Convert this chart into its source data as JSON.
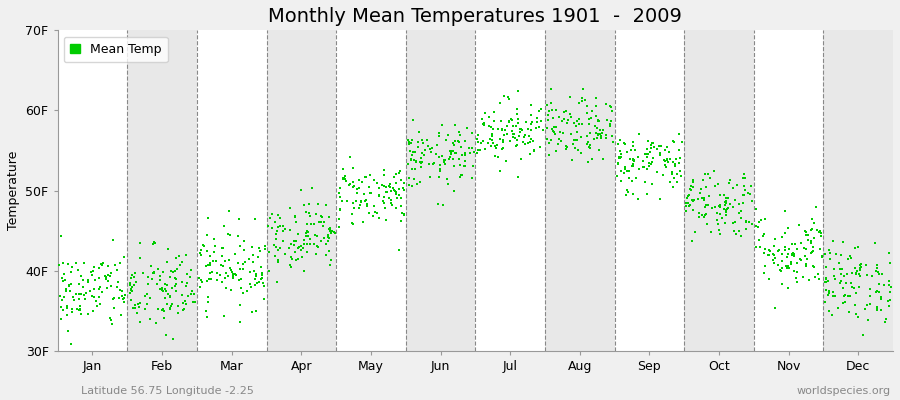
{
  "title": "Monthly Mean Temperatures 1901  -  2009",
  "ylabel": "Temperature",
  "subtitle": "Latitude 56.75 Longitude -2.25",
  "watermark": "worldspecies.org",
  "legend_label": "Mean Temp",
  "dot_color": "#00cc00",
  "bg_color": "#f0f0f0",
  "plot_bg_color": "#ffffff",
  "band_color": "#e8e8e8",
  "ylim_min": 30,
  "ylim_max": 70,
  "yticks": [
    30,
    40,
    50,
    60,
    70
  ],
  "ytick_labels": [
    "30F",
    "40F",
    "50F",
    "60F",
    "70F"
  ],
  "months": [
    "Jan",
    "Feb",
    "Mar",
    "Apr",
    "May",
    "Jun",
    "Jul",
    "Aug",
    "Sep",
    "Oct",
    "Nov",
    "Dec"
  ],
  "monthly_means_F": [
    37.5,
    37.5,
    40.5,
    44.5,
    49.5,
    54.0,
    57.5,
    57.5,
    53.5,
    48.5,
    42.5,
    38.5
  ],
  "monthly_std_F": [
    2.5,
    2.8,
    2.5,
    2.2,
    2.0,
    2.0,
    2.0,
    2.0,
    2.0,
    2.2,
    2.5,
    2.5
  ],
  "years": 109,
  "seed": 42,
  "marker_size": 4,
  "title_fontsize": 14,
  "axis_fontsize": 9,
  "tick_fontsize": 9,
  "legend_fontsize": 9,
  "subtitle_fontsize": 8,
  "watermark_fontsize": 8
}
